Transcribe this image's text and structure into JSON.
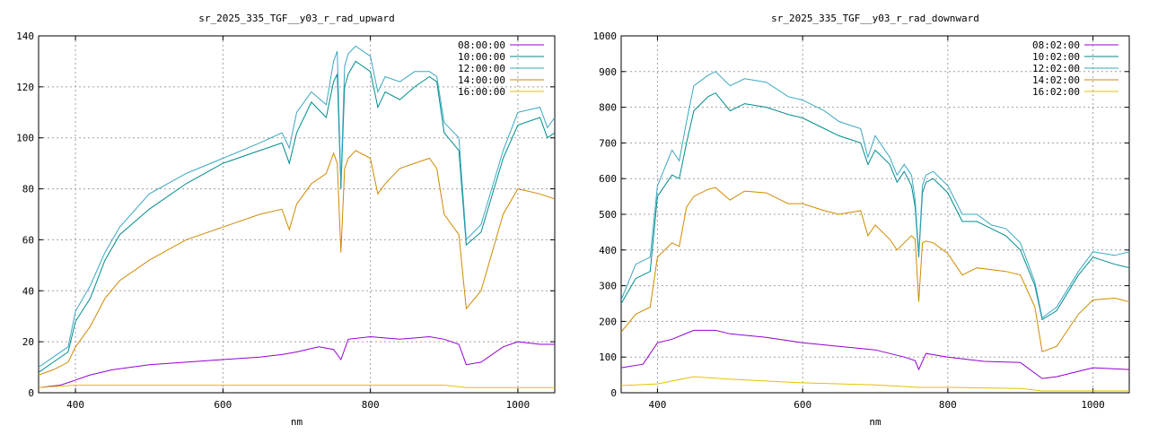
{
  "chart_data": [
    {
      "type": "line",
      "title": "sr_2025_335_TGF__y03_r_rad_upward",
      "xlabel": "nm",
      "ylabel": "",
      "xlim": [
        350,
        1050
      ],
      "ylim": [
        0,
        140
      ],
      "xticks": [
        400,
        600,
        800,
        1000
      ],
      "yticks": [
        0,
        20,
        40,
        60,
        80,
        100,
        120,
        140
      ],
      "grid": true,
      "legend_position": "top-right",
      "series": [
        {
          "name": "08:00:00",
          "color": "#9400d3",
          "x": [
            350,
            380,
            400,
            420,
            450,
            500,
            550,
            600,
            650,
            680,
            700,
            730,
            750,
            760,
            770,
            800,
            840,
            880,
            900,
            920,
            930,
            950,
            980,
            1000,
            1030,
            1050
          ],
          "y": [
            2,
            3,
            5,
            7,
            9,
            11,
            12,
            13,
            14,
            15,
            16,
            18,
            17,
            13,
            21,
            22,
            21,
            22,
            21,
            19,
            11,
            12,
            18,
            20,
            19,
            19
          ]
        },
        {
          "name": "10:00:00",
          "color": "#008b8b",
          "x": [
            350,
            370,
            390,
            400,
            420,
            440,
            460,
            500,
            550,
            600,
            650,
            680,
            690,
            700,
            720,
            740,
            750,
            755,
            760,
            765,
            770,
            780,
            800,
            810,
            820,
            840,
            860,
            880,
            890,
            900,
            920,
            930,
            950,
            980,
            1000,
            1030,
            1040,
            1050
          ],
          "y": [
            8,
            12,
            16,
            28,
            37,
            52,
            62,
            72,
            82,
            90,
            95,
            98,
            90,
            102,
            114,
            108,
            122,
            125,
            80,
            120,
            125,
            130,
            126,
            112,
            118,
            115,
            120,
            124,
            122,
            102,
            95,
            58,
            63,
            92,
            105,
            108,
            100,
            102
          ]
        },
        {
          "name": "12:00:00",
          "color": "#3aa7c0",
          "x": [
            350,
            370,
            390,
            400,
            420,
            440,
            460,
            500,
            550,
            600,
            650,
            680,
            690,
            700,
            720,
            740,
            750,
            755,
            760,
            765,
            770,
            780,
            800,
            810,
            820,
            840,
            860,
            880,
            890,
            900,
            920,
            930,
            950,
            980,
            1000,
            1030,
            1040,
            1050
          ],
          "y": [
            10,
            14,
            18,
            32,
            42,
            55,
            65,
            78,
            86,
            92,
            98,
            102,
            96,
            110,
            118,
            113,
            130,
            134,
            82,
            128,
            133,
            136,
            132,
            118,
            124,
            122,
            126,
            126,
            124,
            106,
            100,
            60,
            66,
            95,
            110,
            112,
            104,
            108
          ]
        },
        {
          "name": "14:00:00",
          "color": "#d08a00",
          "x": [
            350,
            370,
            390,
            400,
            420,
            440,
            460,
            500,
            550,
            600,
            650,
            680,
            690,
            700,
            720,
            740,
            750,
            755,
            760,
            765,
            770,
            780,
            800,
            810,
            820,
            840,
            860,
            880,
            890,
            900,
            920,
            930,
            950,
            980,
            1000,
            1030,
            1050
          ],
          "y": [
            7,
            9,
            12,
            18,
            26,
            37,
            44,
            52,
            60,
            65,
            70,
            72,
            64,
            74,
            82,
            86,
            94,
            90,
            55,
            88,
            92,
            95,
            92,
            78,
            82,
            88,
            90,
            92,
            88,
            70,
            62,
            33,
            40,
            70,
            80,
            78,
            76
          ]
        },
        {
          "name": "16:00:00",
          "color": "#e6c200",
          "x": [
            350,
            400,
            500,
            600,
            700,
            760,
            800,
            900,
            930,
            1000,
            1050
          ],
          "y": [
            2,
            3,
            3,
            3,
            3,
            3,
            3,
            3,
            2,
            2,
            2
          ]
        }
      ]
    },
    {
      "type": "line",
      "title": "sr_2025_335_TGF__y03_r_rad_downward",
      "xlabel": "nm",
      "ylabel": "",
      "xlim": [
        350,
        1050
      ],
      "ylim": [
        0,
        1000
      ],
      "xticks": [
        400,
        600,
        800,
        1000
      ],
      "yticks": [
        0,
        100,
        200,
        300,
        400,
        500,
        600,
        700,
        800,
        900,
        1000
      ],
      "grid": true,
      "legend_position": "top-right",
      "series": [
        {
          "name": "08:02:00",
          "color": "#9400d3",
          "x": [
            350,
            380,
            400,
            420,
            450,
            480,
            500,
            550,
            600,
            650,
            700,
            740,
            755,
            760,
            770,
            800,
            850,
            900,
            930,
            950,
            980,
            1000,
            1050
          ],
          "y": [
            70,
            80,
            140,
            150,
            175,
            175,
            165,
            155,
            140,
            130,
            120,
            100,
            90,
            65,
            110,
            100,
            88,
            85,
            40,
            45,
            60,
            70,
            65
          ]
        },
        {
          "name": "10:02:00",
          "color": "#008b8b",
          "x": [
            350,
            370,
            390,
            400,
            420,
            430,
            440,
            450,
            470,
            480,
            500,
            520,
            550,
            580,
            600,
            630,
            650,
            680,
            690,
            700,
            720,
            730,
            740,
            750,
            755,
            760,
            765,
            770,
            780,
            800,
            820,
            840,
            860,
            880,
            900,
            920,
            930,
            950,
            980,
            1000,
            1030,
            1050
          ],
          "y": [
            250,
            320,
            340,
            550,
            610,
            600,
            700,
            790,
            830,
            840,
            790,
            810,
            800,
            780,
            770,
            740,
            720,
            700,
            640,
            680,
            640,
            590,
            620,
            580,
            520,
            380,
            560,
            590,
            600,
            560,
            480,
            480,
            460,
            440,
            400,
            300,
            205,
            230,
            330,
            380,
            360,
            350
          ]
        },
        {
          "name": "12:02:00",
          "color": "#3aa7c0",
          "x": [
            350,
            370,
            390,
            400,
            420,
            430,
            440,
            450,
            470,
            480,
            500,
            520,
            550,
            580,
            600,
            630,
            650,
            680,
            690,
            700,
            720,
            730,
            740,
            750,
            755,
            760,
            765,
            770,
            780,
            800,
            820,
            840,
            860,
            880,
            900,
            920,
            930,
            950,
            980,
            1000,
            1030,
            1050
          ],
          "y": [
            260,
            360,
            380,
            580,
            680,
            650,
            760,
            860,
            890,
            900,
            860,
            880,
            870,
            830,
            820,
            790,
            760,
            740,
            660,
            720,
            660,
            610,
            640,
            610,
            540,
            390,
            580,
            610,
            620,
            580,
            500,
            500,
            470,
            460,
            420,
            310,
            210,
            240,
            340,
            395,
            385,
            395
          ]
        },
        {
          "name": "14:02:00",
          "color": "#d08a00",
          "x": [
            350,
            370,
            390,
            400,
            420,
            430,
            440,
            450,
            470,
            480,
            500,
            520,
            550,
            580,
            600,
            630,
            650,
            680,
            690,
            700,
            720,
            730,
            740,
            750,
            755,
            760,
            765,
            770,
            780,
            800,
            820,
            840,
            860,
            880,
            900,
            920,
            930,
            950,
            980,
            1000,
            1030,
            1050
          ],
          "y": [
            170,
            220,
            240,
            380,
            420,
            410,
            520,
            550,
            570,
            575,
            540,
            565,
            560,
            530,
            530,
            510,
            500,
            510,
            440,
            470,
            430,
            400,
            420,
            440,
            430,
            255,
            420,
            425,
            420,
            390,
            330,
            350,
            345,
            340,
            330,
            240,
            115,
            130,
            220,
            260,
            265,
            255
          ]
        },
        {
          "name": "16:02:00",
          "color": "#e6c200",
          "x": [
            350,
            400,
            450,
            500,
            600,
            700,
            760,
            800,
            900,
            930,
            1000,
            1050
          ],
          "y": [
            20,
            25,
            45,
            38,
            28,
            22,
            15,
            15,
            12,
            5,
            5,
            5
          ]
        }
      ]
    }
  ]
}
